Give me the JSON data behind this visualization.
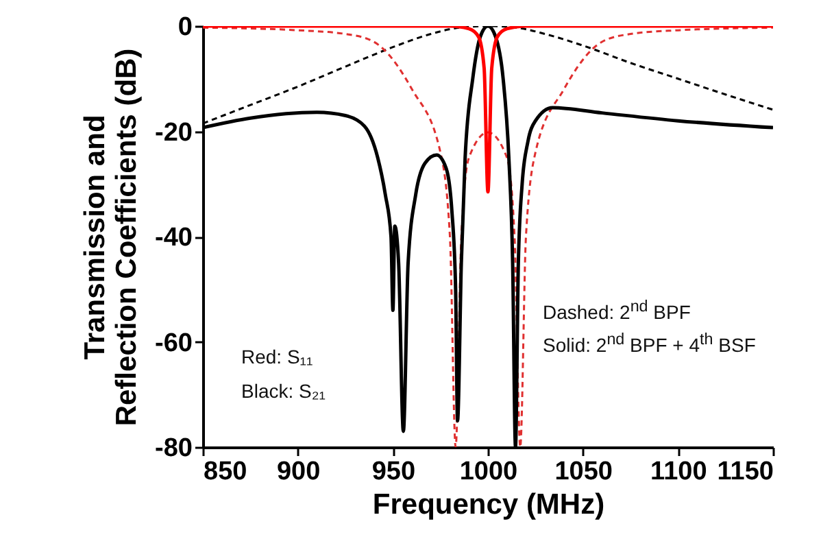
{
  "chart_data": {
    "type": "line",
    "xlabel": "Frequency (MHz)",
    "ylabel": "Transmission and Reflection Coefficients (dB)",
    "xlim": [
      850,
      1150
    ],
    "ylim": [
      -80,
      0
    ],
    "xticks": [
      850,
      900,
      950,
      1000,
      1050,
      1100,
      1150
    ],
    "yticks": [
      -80,
      -60,
      -40,
      -20,
      0
    ],
    "series": [
      {
        "color": "#000000",
        "line_style": "dashed",
        "x": [
          850,
          875,
          900,
          925,
          950,
          970,
          985,
          1000,
          1015,
          1030,
          1050,
          1075,
          1100,
          1125,
          1150
        ],
        "values": [
          -18.5,
          -15,
          -11.5,
          -7.7,
          -4,
          -1.5,
          -0.3,
          0,
          -0.3,
          -1.5,
          -3.7,
          -7,
          -10,
          -13,
          -15.9
        ]
      },
      {
        "color": "#e03030",
        "line_style": "dashed",
        "x": [
          850,
          900,
          925,
          940,
          960,
          975,
          980,
          983,
          986,
          990,
          1000,
          1010,
          1014,
          1017,
          1020,
          1025,
          1040,
          1060,
          1075,
          1100,
          1150
        ],
        "values": [
          -0.3,
          -0.8,
          -1.5,
          -3,
          -12,
          -24,
          -40,
          -80,
          -40,
          -25,
          -20.2,
          -25,
          -40,
          -80,
          -40,
          -24,
          -12,
          -3,
          -1.5,
          -0.8,
          -0.3
        ]
      },
      {
        "color": "#000000",
        "line_style": "solid",
        "x": [
          850,
          875,
          910,
          925,
          935,
          942,
          946,
          949,
          950,
          951,
          953,
          955.5,
          958,
          962,
          967,
          973,
          978,
          981,
          983,
          984,
          986,
          988,
          992,
          996,
          1000,
          1004,
          1008,
          1011,
          1013,
          1014.5,
          1016,
          1018,
          1021,
          1025,
          1034,
          1060,
          1100,
          1150
        ],
        "values": [
          -19.3,
          -17.5,
          -16.4,
          -17,
          -19,
          -25,
          -32,
          -40,
          -54,
          -38,
          -45,
          -77,
          -45,
          -32,
          -26,
          -24.5,
          -27,
          -35,
          -50,
          -75,
          -45,
          -25,
          -10,
          -2,
          0,
          -2,
          -10,
          -25,
          -45,
          -80,
          -45,
          -30,
          -22,
          -18,
          -15.5,
          -16.5,
          -18,
          -19.3
        ]
      },
      {
        "color": "#ff0000",
        "line_style": "solid",
        "x": [
          850,
          980,
          990,
          995,
          998,
          1000,
          1002,
          1005,
          1010,
          1020,
          1150
        ],
        "values": [
          0,
          0,
          -0.5,
          -2,
          -8,
          -31.5,
          -8,
          -2,
          -0.5,
          0,
          0
        ]
      }
    ],
    "annotations": [
      "Red: S₁₁",
      "Black: S₂₁",
      "Dashed: 2$^{nd}$ BPF",
      "Solid: 2$^{nd}$ BPF + 4$^{th}$ BSF"
    ]
  }
}
